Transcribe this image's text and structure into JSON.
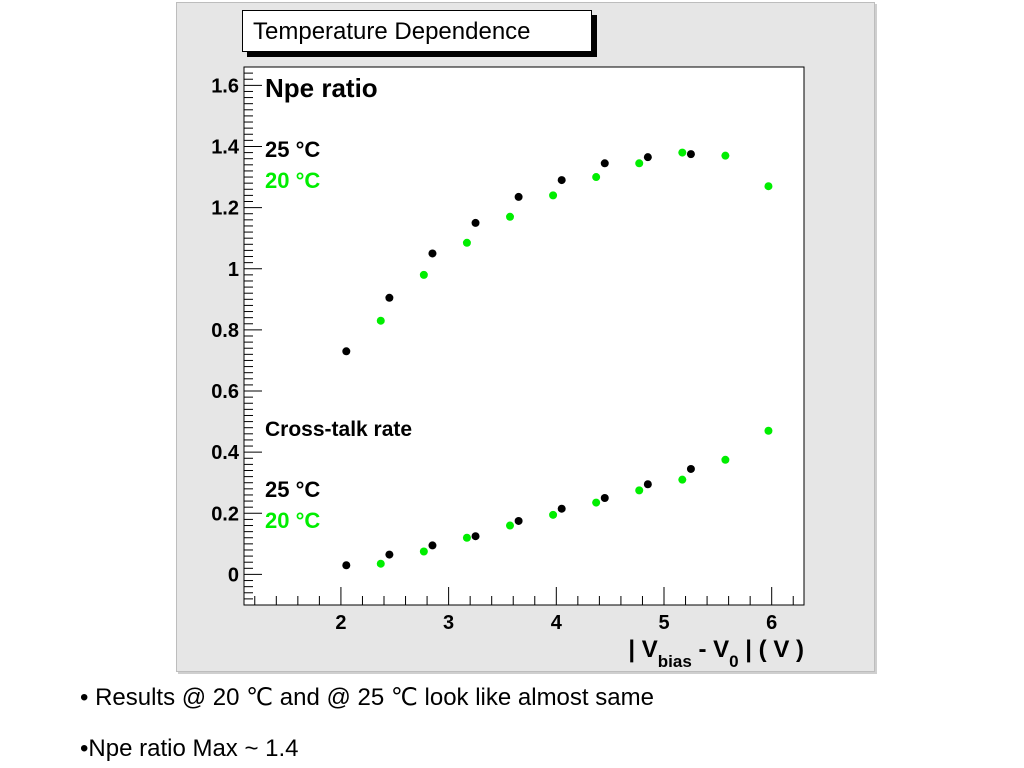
{
  "chart_data": {
    "type": "scatter",
    "title": "Temperature Dependence",
    "xlabel": "| V_bias - V_0 | ( V )",
    "ylabel": "",
    "xlim": [
      1.1,
      6.3
    ],
    "ylim": [
      -0.1,
      1.66
    ],
    "xticks": [
      "2",
      "3",
      "4",
      "5",
      "6"
    ],
    "yticks": [
      "0",
      "0.2",
      "0.4",
      "0.6",
      "0.8",
      "1",
      "1.2",
      "1.4",
      "1.6"
    ],
    "grid": false,
    "series": [
      {
        "name": "25 °C",
        "group": "Npe ratio",
        "color": "#000000",
        "points": [
          [
            2.05,
            0.73
          ],
          [
            2.45,
            0.905
          ],
          [
            2.85,
            1.05
          ],
          [
            3.25,
            1.15
          ],
          [
            3.65,
            1.235
          ],
          [
            4.05,
            1.29
          ],
          [
            4.45,
            1.345
          ],
          [
            4.85,
            1.365
          ],
          [
            5.25,
            1.375
          ]
        ]
      },
      {
        "name": "20 °C",
        "group": "Npe ratio",
        "color": "#00ee00",
        "points": [
          [
            2.37,
            0.83
          ],
          [
            2.77,
            0.98
          ],
          [
            3.17,
            1.085
          ],
          [
            3.57,
            1.17
          ],
          [
            3.97,
            1.24
          ],
          [
            4.37,
            1.3
          ],
          [
            4.77,
            1.345
          ],
          [
            5.17,
            1.38
          ],
          [
            5.57,
            1.37
          ],
          [
            5.97,
            1.27
          ]
        ]
      },
      {
        "name": "25 °C",
        "group": "Cross-talk rate",
        "color": "#000000",
        "points": [
          [
            2.05,
            0.03
          ],
          [
            2.45,
            0.065
          ],
          [
            2.85,
            0.095
          ],
          [
            3.25,
            0.125
          ],
          [
            3.65,
            0.175
          ],
          [
            4.05,
            0.215
          ],
          [
            4.45,
            0.25
          ],
          [
            4.85,
            0.295
          ],
          [
            5.25,
            0.345
          ]
        ]
      },
      {
        "name": "20 °C",
        "group": "Cross-talk rate",
        "color": "#00ee00",
        "points": [
          [
            2.37,
            0.035
          ],
          [
            2.77,
            0.075
          ],
          [
            3.17,
            0.12
          ],
          [
            3.57,
            0.16
          ],
          [
            3.97,
            0.195
          ],
          [
            4.37,
            0.235
          ],
          [
            4.77,
            0.275
          ],
          [
            5.17,
            0.31
          ],
          [
            5.57,
            0.375
          ],
          [
            5.97,
            0.47
          ]
        ]
      }
    ],
    "annotations": {
      "npe_title": "Npe ratio",
      "npe_25": "25 °C",
      "npe_20": "20 °C",
      "ct_title": "Cross-talk rate",
      "ct_25": "25 °C",
      "ct_20": "20 °C"
    },
    "xlabel_parts": {
      "pre": "| V",
      "sub1": "bias",
      "mid": " - V",
      "sub2": "0",
      "post": " | ( V )"
    }
  },
  "bullets": [
    "• Results @ 20 ℃ and @ 25 ℃ look like almost same",
    "•Npe ratio Max ~ 1.4"
  ]
}
